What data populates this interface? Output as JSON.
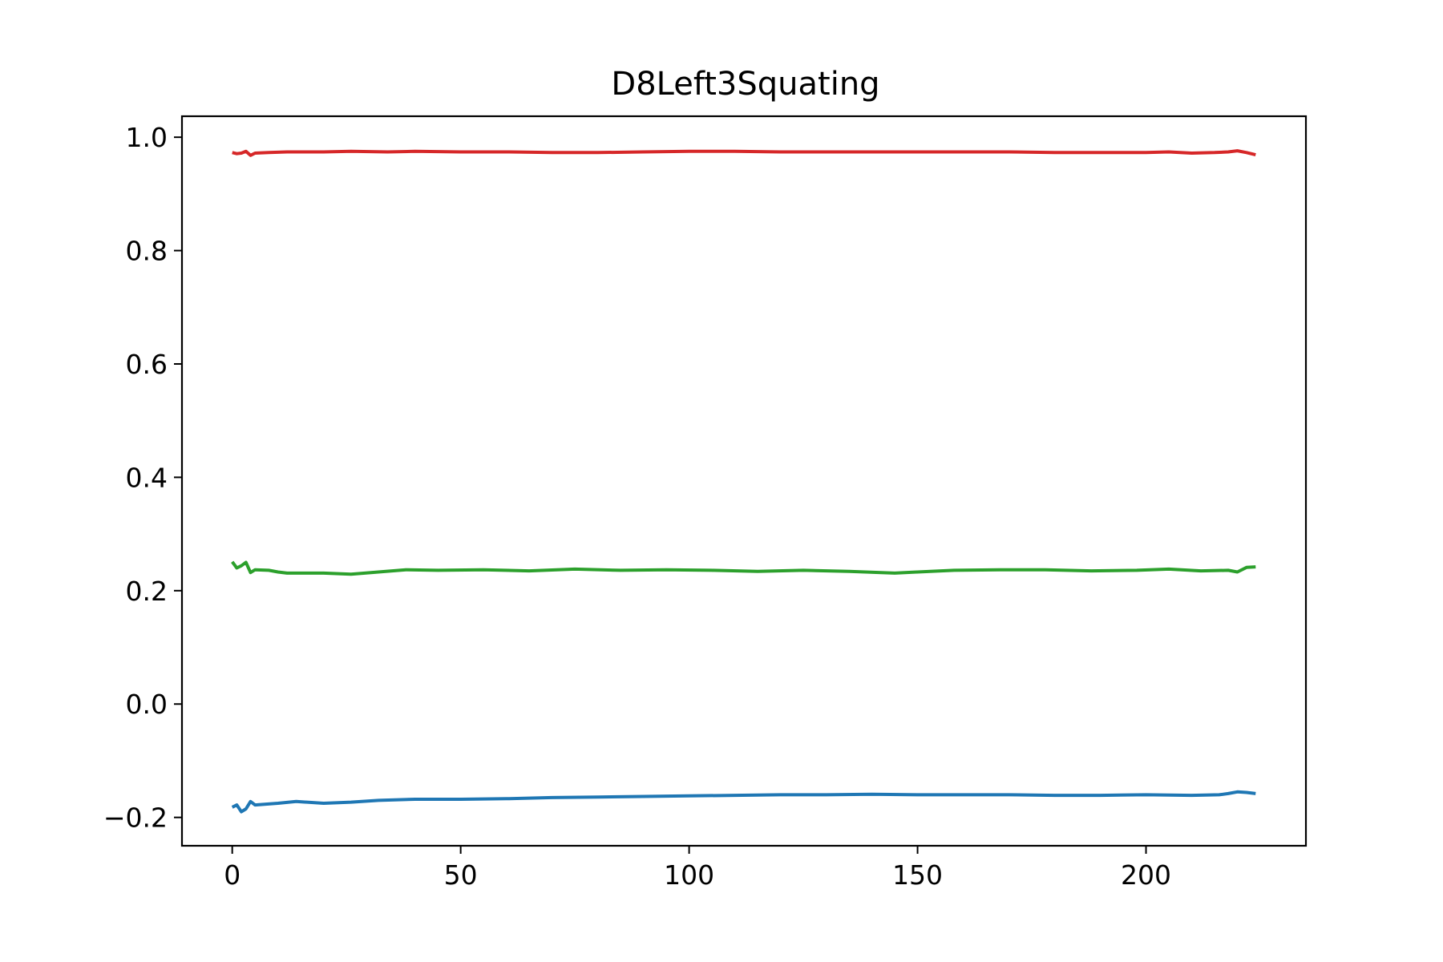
{
  "chart_data": {
    "type": "line",
    "title": "D8Left3Squating",
    "xlabel": "",
    "ylabel": "",
    "xlim": [
      -11,
      235
    ],
    "ylim": [
      -0.25,
      1.037
    ],
    "xticks": [
      {
        "value": 0,
        "label": "0"
      },
      {
        "value": 50,
        "label": "50"
      },
      {
        "value": 100,
        "label": "100"
      },
      {
        "value": 150,
        "label": "150"
      },
      {
        "value": 200,
        "label": "200"
      }
    ],
    "yticks": [
      {
        "value": -0.2,
        "label": "−0.2"
      },
      {
        "value": 0.0,
        "label": "0.0"
      },
      {
        "value": 0.2,
        "label": "0.2"
      },
      {
        "value": 0.4,
        "label": "0.4"
      },
      {
        "value": 0.6,
        "label": "0.6"
      },
      {
        "value": 0.8,
        "label": "0.8"
      },
      {
        "value": 1.0,
        "label": "1.0"
      }
    ],
    "grid": false,
    "series": [
      {
        "color": "#d62728",
        "points": [
          [
            0,
            0.973
          ],
          [
            1,
            0.971
          ],
          [
            2,
            0.972
          ],
          [
            3,
            0.975
          ],
          [
            4,
            0.968
          ],
          [
            5,
            0.972
          ],
          [
            8,
            0.973
          ],
          [
            12,
            0.974
          ],
          [
            20,
            0.974
          ],
          [
            26,
            0.975
          ],
          [
            34,
            0.974
          ],
          [
            40,
            0.975
          ],
          [
            50,
            0.974
          ],
          [
            60,
            0.974
          ],
          [
            70,
            0.973
          ],
          [
            80,
            0.973
          ],
          [
            90,
            0.974
          ],
          [
            100,
            0.975
          ],
          [
            110,
            0.975
          ],
          [
            120,
            0.974
          ],
          [
            130,
            0.974
          ],
          [
            140,
            0.974
          ],
          [
            150,
            0.974
          ],
          [
            160,
            0.974
          ],
          [
            170,
            0.974
          ],
          [
            180,
            0.973
          ],
          [
            190,
            0.973
          ],
          [
            200,
            0.973
          ],
          [
            205,
            0.974
          ],
          [
            210,
            0.972
          ],
          [
            215,
            0.973
          ],
          [
            218,
            0.974
          ],
          [
            220,
            0.976
          ],
          [
            222,
            0.973
          ],
          [
            224,
            0.969
          ]
        ]
      },
      {
        "color": "#2ca02c",
        "points": [
          [
            0,
            0.251
          ],
          [
            1,
            0.24
          ],
          [
            2,
            0.244
          ],
          [
            3,
            0.25
          ],
          [
            4,
            0.232
          ],
          [
            5,
            0.237
          ],
          [
            8,
            0.236
          ],
          [
            10,
            0.233
          ],
          [
            12,
            0.231
          ],
          [
            20,
            0.231
          ],
          [
            26,
            0.229
          ],
          [
            32,
            0.233
          ],
          [
            38,
            0.237
          ],
          [
            45,
            0.236
          ],
          [
            55,
            0.237
          ],
          [
            65,
            0.235
          ],
          [
            75,
            0.238
          ],
          [
            85,
            0.236
          ],
          [
            95,
            0.237
          ],
          [
            105,
            0.236
          ],
          [
            115,
            0.234
          ],
          [
            125,
            0.236
          ],
          [
            135,
            0.234
          ],
          [
            145,
            0.231
          ],
          [
            150,
            0.233
          ],
          [
            158,
            0.236
          ],
          [
            168,
            0.237
          ],
          [
            178,
            0.237
          ],
          [
            188,
            0.235
          ],
          [
            198,
            0.236
          ],
          [
            205,
            0.238
          ],
          [
            212,
            0.235
          ],
          [
            218,
            0.236
          ],
          [
            220,
            0.233
          ],
          [
            222,
            0.241
          ],
          [
            224,
            0.242
          ]
        ]
      },
      {
        "color": "#1f77b4",
        "points": [
          [
            0,
            -0.182
          ],
          [
            1,
            -0.178
          ],
          [
            2,
            -0.19
          ],
          [
            3,
            -0.185
          ],
          [
            4,
            -0.172
          ],
          [
            5,
            -0.178
          ],
          [
            10,
            -0.175
          ],
          [
            14,
            -0.172
          ],
          [
            20,
            -0.175
          ],
          [
            26,
            -0.173
          ],
          [
            32,
            -0.17
          ],
          [
            40,
            -0.168
          ],
          [
            50,
            -0.168
          ],
          [
            60,
            -0.167
          ],
          [
            70,
            -0.165
          ],
          [
            80,
            -0.164
          ],
          [
            90,
            -0.163
          ],
          [
            100,
            -0.162
          ],
          [
            110,
            -0.161
          ],
          [
            120,
            -0.16
          ],
          [
            130,
            -0.16
          ],
          [
            140,
            -0.159
          ],
          [
            150,
            -0.16
          ],
          [
            160,
            -0.16
          ],
          [
            170,
            -0.16
          ],
          [
            180,
            -0.161
          ],
          [
            190,
            -0.161
          ],
          [
            200,
            -0.16
          ],
          [
            210,
            -0.161
          ],
          [
            216,
            -0.16
          ],
          [
            218,
            -0.158
          ],
          [
            220,
            -0.155
          ],
          [
            222,
            -0.156
          ],
          [
            224,
            -0.158
          ]
        ]
      }
    ]
  }
}
